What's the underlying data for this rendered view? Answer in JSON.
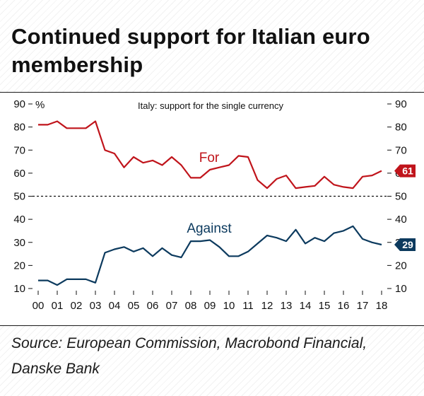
{
  "title": "Continued support for Italian euro membership",
  "source": "Source: European Commission, Macrobond Financial, Danske Bank",
  "chart_data": {
    "type": "line",
    "title": "Italy: support for the single currency",
    "ylabel": "%",
    "ylim": [
      10,
      90
    ],
    "yticks": [
      10,
      20,
      30,
      40,
      50,
      60,
      70,
      80,
      90
    ],
    "xlim": [
      2000,
      2018
    ],
    "xticks": [
      "00",
      "01",
      "02",
      "03",
      "04",
      "05",
      "06",
      "07",
      "08",
      "09",
      "10",
      "11",
      "12",
      "13",
      "14",
      "15",
      "16",
      "17",
      "18"
    ],
    "reference_line": 50,
    "colors": {
      "for": "#c0141b",
      "against": "#0c3a5e",
      "reference": "#111111"
    },
    "series": [
      {
        "name": "For",
        "end_label": "61",
        "x": [
          2000,
          2000.5,
          2001,
          2001.5,
          2002,
          2002.5,
          2003,
          2003.5,
          2004,
          2004.5,
          2005,
          2005.5,
          2006,
          2006.5,
          2007,
          2007.5,
          2008,
          2008.5,
          2009,
          2009.5,
          2010,
          2010.5,
          2011,
          2011.5,
          2012,
          2012.5,
          2013,
          2013.5,
          2014,
          2014.5,
          2015,
          2015.5,
          2016,
          2016.5,
          2017,
          2017.5,
          2018
        ],
        "values": [
          81,
          81,
          82.5,
          79.5,
          79.5,
          79.5,
          82.5,
          70,
          68.5,
          62.5,
          67,
          64.5,
          65.5,
          63.5,
          67,
          63.5,
          58,
          58,
          61.5,
          62.5,
          63.5,
          67.5,
          67,
          57,
          53.5,
          57.5,
          59,
          53.5,
          54,
          54.5,
          58.5,
          55,
          54,
          53.5,
          58.5,
          59,
          61
        ]
      },
      {
        "name": "Against",
        "end_label": "29",
        "x": [
          2000,
          2000.5,
          2001,
          2001.5,
          2002,
          2002.5,
          2003,
          2003.5,
          2004,
          2004.5,
          2005,
          2005.5,
          2006,
          2006.5,
          2007,
          2007.5,
          2008,
          2008.5,
          2009,
          2009.5,
          2010,
          2010.5,
          2011,
          2011.5,
          2012,
          2012.5,
          2013,
          2013.5,
          2014,
          2014.5,
          2015,
          2015.5,
          2016,
          2016.5,
          2017,
          2017.5,
          2018
        ],
        "values": [
          13.5,
          13.5,
          11.5,
          14,
          14,
          14,
          12.5,
          25.5,
          27,
          28,
          26,
          27.5,
          24,
          27.5,
          24.5,
          23.5,
          30.5,
          30.5,
          31,
          28,
          24,
          24,
          26,
          29.5,
          33,
          32,
          30.5,
          35.5,
          29.5,
          32,
          30.5,
          34,
          35,
          37,
          31.5,
          30,
          29
        ]
      }
    ]
  }
}
